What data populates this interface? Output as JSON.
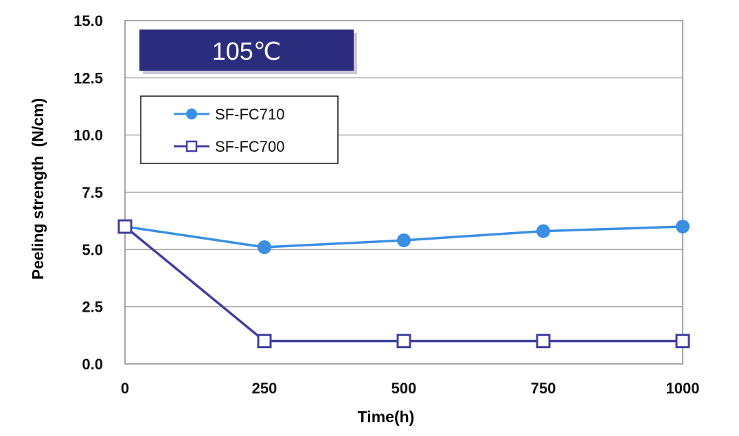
{
  "chart_data": {
    "type": "line",
    "title": "105℃",
    "xlabel": "Time(h)",
    "ylabel": "Peeling strength  (N/cm)",
    "x": [
      0,
      250,
      500,
      750,
      1000
    ],
    "x_tick_labels": [
      "0",
      "250",
      "500",
      "750",
      "1000"
    ],
    "y_tick_labels": [
      "0.0",
      "2.5",
      "5.0",
      "7.5",
      "10.0",
      "12.5",
      "15.0"
    ],
    "xlim": [
      0,
      1000
    ],
    "ylim": [
      0,
      15
    ],
    "grid": "horizontal",
    "legend_position": "top-left",
    "series": [
      {
        "name": "SF-FC710",
        "marker": "filled-circle",
        "color": "#3b8fe3",
        "values": [
          6.0,
          5.1,
          5.4,
          5.8,
          6.0
        ]
      },
      {
        "name": "SF-FC700",
        "marker": "open-square",
        "color": "#3f3f9e",
        "values": [
          6.0,
          1.0,
          1.0,
          1.0,
          1.0
        ]
      }
    ],
    "colors": {
      "banner": "#2c2c7e",
      "grid": "#a8a8a8",
      "frame": "#8a8a8a"
    }
  }
}
